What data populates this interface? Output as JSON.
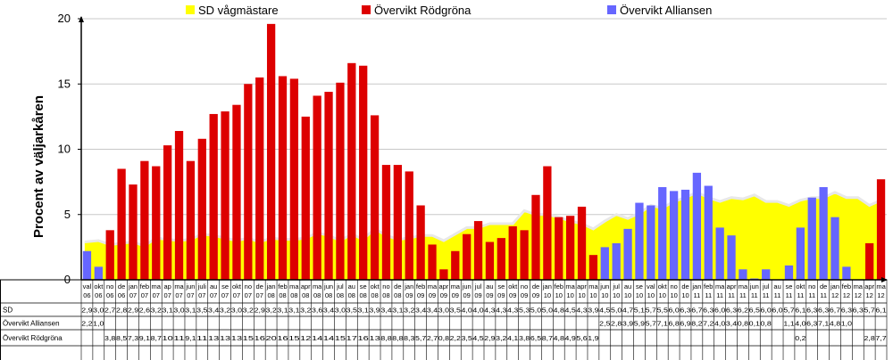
{
  "chart_data": {
    "type": "bar",
    "ylabel": "Procent av väljarkåren",
    "ylim": [
      0,
      20
    ],
    "yticks": [
      0,
      5,
      10,
      15,
      20
    ],
    "legend_position": "top",
    "grid": true,
    "categories": [
      [
        "val",
        "06"
      ],
      [
        "okt",
        "06"
      ],
      [
        "no",
        "06"
      ],
      [
        "de",
        "06"
      ],
      [
        "jan",
        "07"
      ],
      [
        "feb",
        "07"
      ],
      [
        "ma",
        "07"
      ],
      [
        "ap",
        "07"
      ],
      [
        "ma",
        "07"
      ],
      [
        "jun",
        "07"
      ],
      [
        "juli",
        "07"
      ],
      [
        "au",
        "07"
      ],
      [
        "se",
        "07"
      ],
      [
        "okt",
        "07"
      ],
      [
        "no",
        "07"
      ],
      [
        "de",
        "07"
      ],
      [
        "jan",
        "08"
      ],
      [
        "feb",
        "08"
      ],
      [
        "ma",
        "08"
      ],
      [
        "apr",
        "08"
      ],
      [
        "ma",
        "08"
      ],
      [
        "jun",
        "08"
      ],
      [
        "jul",
        "08"
      ],
      [
        "au",
        "08"
      ],
      [
        "se",
        "08"
      ],
      [
        "okt",
        "08"
      ],
      [
        "no",
        "08"
      ],
      [
        "de",
        "08"
      ],
      [
        "jan",
        "09"
      ],
      [
        "feb",
        "09"
      ],
      [
        "ma",
        "09"
      ],
      [
        "apr",
        "09"
      ],
      [
        "ma",
        "09"
      ],
      [
        "jun",
        "09"
      ],
      [
        "jul",
        "09"
      ],
      [
        "au",
        "09"
      ],
      [
        "se",
        "09"
      ],
      [
        "okt",
        "09"
      ],
      [
        "no",
        "09"
      ],
      [
        "de",
        "09"
      ],
      [
        "jan",
        "10"
      ],
      [
        "feb",
        "10"
      ],
      [
        "ma",
        "10"
      ],
      [
        "apr",
        "10"
      ],
      [
        "ma",
        "10"
      ],
      [
        "jun",
        "10"
      ],
      [
        "jul",
        "10"
      ],
      [
        "au",
        "10"
      ],
      [
        "se",
        "10"
      ],
      [
        "val",
        "10"
      ],
      [
        "okt",
        "10"
      ],
      [
        "no",
        "10"
      ],
      [
        "de",
        "10"
      ],
      [
        "jan",
        "11"
      ],
      [
        "feb",
        "11"
      ],
      [
        "ma",
        "11"
      ],
      [
        "apr",
        "11"
      ],
      [
        "ma",
        "11"
      ],
      [
        "jun",
        "11"
      ],
      [
        "jul",
        "11"
      ],
      [
        "au",
        "11"
      ],
      [
        "se",
        "11"
      ],
      [
        "okt",
        "11"
      ],
      [
        "no",
        "11"
      ],
      [
        "de",
        "11"
      ],
      [
        "jan",
        "12"
      ],
      [
        "feb",
        "12"
      ],
      [
        "ma",
        "12"
      ],
      [
        "apr",
        "12"
      ],
      [
        "ma",
        "12"
      ]
    ],
    "series": [
      {
        "name": "SD vågmästare",
        "kind": "area",
        "color": "#ffff00",
        "values": [
          2.9,
          3.0,
          2.7,
          2.8,
          2.9,
          2.6,
          3.2,
          3.1,
          3.0,
          3.1,
          3.5,
          3.4,
          3.2,
          3.0,
          3.2,
          2.9,
          3.2,
          3.1,
          3.1,
          3.2,
          3.6,
          3.4,
          3.0,
          3.5,
          3.1,
          3.9,
          3.4,
          3.1,
          3.2,
          3.4,
          3.4,
          3.0,
          3.5,
          4.0,
          4.0,
          4.3,
          4.3,
          4.3,
          5.3,
          5.0,
          5.0,
          4.8,
          4.5,
          4.3,
          3.9,
          4.5,
          5.0,
          4.7,
          5.1,
          5.7,
          5.5,
          6.0,
          6.3,
          6.7,
          6.3,
          6.0,
          6.3,
          6.2,
          6.5,
          6.0,
          6.0,
          5.7,
          6.1,
          6.3,
          6.3,
          6.7,
          6.3,
          6.3,
          5.7,
          6.1
        ]
      },
      {
        "name": "Övervikt Rödgröna",
        "kind": "bar",
        "color": "#dd0000",
        "values": [
          null,
          null,
          3.8,
          8.5,
          7.3,
          9.1,
          8.7,
          10.3,
          11.4,
          9.1,
          10.8,
          12.7,
          12.9,
          13.4,
          15.0,
          15.5,
          19.6,
          15.6,
          15.4,
          12.5,
          14.1,
          14.4,
          15.1,
          16.6,
          16.4,
          12.6,
          8.8,
          8.8,
          8.3,
          5.7,
          2.7,
          0.8,
          2.2,
          3.5,
          4.5,
          2.9,
          3.2,
          4.1,
          3.8,
          6.5,
          8.7,
          4.8,
          4.9,
          5.6,
          1.9,
          null,
          null,
          null,
          null,
          null,
          null,
          null,
          null,
          null,
          null,
          null,
          null,
          null,
          null,
          null,
          null,
          null,
          0.2,
          null,
          null,
          null,
          null,
          null,
          2.8,
          7.7
        ]
      },
      {
        "name": "Övervikt Alliansen",
        "kind": "bar",
        "color": "#6666ff",
        "values": [
          2.2,
          1.0,
          null,
          null,
          null,
          null,
          null,
          null,
          null,
          null,
          null,
          null,
          null,
          null,
          null,
          null,
          null,
          null,
          null,
          null,
          null,
          null,
          null,
          null,
          null,
          null,
          null,
          null,
          null,
          null,
          null,
          null,
          null,
          null,
          null,
          null,
          null,
          null,
          null,
          null,
          null,
          null,
          null,
          null,
          null,
          2.5,
          2.8,
          3.9,
          5.9,
          5.7,
          7.1,
          6.8,
          6.9,
          8.2,
          7.2,
          4.0,
          3.4,
          0.8,
          0.1,
          0.8,
          null,
          1.1,
          4.0,
          6.3,
          7.1,
          4.8,
          1.0,
          null,
          null,
          null
        ]
      }
    ],
    "table": {
      "row_labels": [
        "SD",
        "Övervikt Alliansen",
        "Övervikt Rödgröna"
      ],
      "rows": [
        [
          "2,9",
          "3,0",
          "2,7",
          "2,8",
          "2,9",
          "2,6",
          "3,2",
          "3,1",
          "3,0",
          "3,1",
          "3,5",
          "3,4",
          "3,2",
          "3,0",
          "3,2",
          "2,9",
          "3,2",
          "3,1",
          "3,1",
          "3,2",
          "3,6",
          "3,4",
          "3,0",
          "3,5",
          "3,1",
          "3,9",
          "3,4",
          "3,1",
          "3,2",
          "3,4",
          "3,4",
          "3,0",
          "3,5",
          "4,0",
          "4,0",
          "4,3",
          "4,3",
          "4,3",
          "5,3",
          "5,0",
          "5,0",
          "4,8",
          "4,5",
          "4,3",
          "3,9",
          "4,5",
          "5,0",
          "4,7",
          "5,1",
          "5,7",
          "5,5",
          "6,0",
          "6,3",
          "6,7",
          "6,3",
          "6,0",
          "6,3",
          "6,2",
          "6,5",
          "6,0",
          "6,0",
          "5,7",
          "6,1",
          "6,3",
          "6,3",
          "6,7",
          "6,3",
          "6,3",
          "5,7",
          "6,1"
        ],
        [
          "2,2",
          "1,0",
          "",
          "",
          "",
          "",
          "",
          "",
          "",
          "",
          "",
          "",
          "",
          "",
          "",
          "",
          "",
          "",
          "",
          "",
          "",
          "",
          "",
          "",
          "",
          "",
          "",
          "",
          "",
          "",
          "",
          "",
          "",
          "",
          "",
          "",
          "",
          "",
          "",
          "",
          "",
          "",
          "",
          "",
          "",
          "2,5",
          "2,8",
          "3,9",
          "5,9",
          "5,7",
          "7,1",
          "6,8",
          "6,9",
          "8,2",
          "7,2",
          "4,0",
          "3,4",
          "0,8",
          "0,1",
          "0,8",
          "",
          "1,1",
          "4,0",
          "6,3",
          "7,1",
          "4,8",
          "1,0",
          "",
          "",
          ""
        ],
        [
          "",
          "",
          "3,8",
          "8,5",
          "7,3",
          "9,1",
          "8,7",
          "10",
          "11",
          "9,1",
          "11",
          "13",
          "13",
          "13",
          "15",
          "16",
          "20",
          "16",
          "15",
          "12",
          "14",
          "14",
          "15",
          "17",
          "16",
          "13",
          "8,8",
          "8,8",
          "8,3",
          "5,7",
          "2,7",
          "0,8",
          "2,2",
          "3,5",
          "4,5",
          "2,9",
          "3,2",
          "4,1",
          "3,8",
          "6,5",
          "8,7",
          "4,8",
          "4,9",
          "5,6",
          "1,9",
          "",
          "",
          "",
          "",
          "",
          "",
          "",
          "",
          "",
          "",
          "",
          "",
          "",
          "",
          "",
          "",
          "",
          "0,2",
          "",
          "",
          "",
          "",
          "",
          "2,8",
          "7,7"
        ]
      ]
    }
  }
}
